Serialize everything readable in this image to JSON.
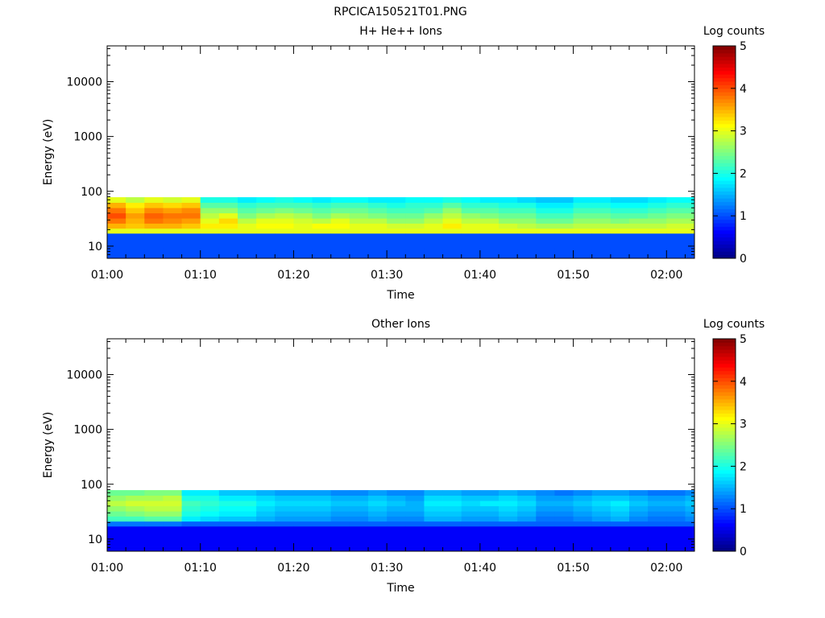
{
  "figure": {
    "title": "RPCICA150521T01.PNG"
  },
  "colors": {
    "colormap": [
      "#00007f",
      "#0000ff",
      "#007fff",
      "#00ffff",
      "#7fff7f",
      "#ffff00",
      "#ff7f00",
      "#ff0000",
      "#7f0000"
    ],
    "background": "#ffffff",
    "axis": "#000000"
  },
  "chart_data": [
    {
      "type": "heatmap",
      "title": "H+ He++ Ions",
      "xlabel": "Time",
      "ylabel": "Energy (eV)",
      "xlim": [
        "01:00",
        "02:03"
      ],
      "xticks": [
        "01:00",
        "01:10",
        "01:20",
        "01:30",
        "01:40",
        "01:50",
        "02:00"
      ],
      "yscale": "log",
      "ylim": [
        6,
        45000
      ],
      "yticks": [
        "10",
        "100",
        "1000",
        "10000"
      ],
      "data_energy_range": [
        6,
        95
      ],
      "colorbar": {
        "label": "Log counts",
        "range": [
          0,
          5
        ],
        "ticks": [
          "0",
          "1",
          "2",
          "3",
          "4",
          "5"
        ]
      },
      "time_bins": [
        "01:00",
        "01:02",
        "01:04",
        "01:06",
        "01:08",
        "01:10",
        "01:12",
        "01:14",
        "01:16",
        "01:18",
        "01:20",
        "01:22",
        "01:24",
        "01:26",
        "01:28",
        "01:30",
        "01:32",
        "01:34",
        "01:36",
        "01:38",
        "01:40",
        "01:42",
        "01:44",
        "01:46",
        "01:48",
        "01:50",
        "01:52",
        "01:54",
        "01:56",
        "01:58",
        "02:00",
        "02:02"
      ],
      "energy_bins": [
        6.5,
        8,
        10,
        12.5,
        15.5,
        19,
        23.5,
        29,
        36,
        45,
        56,
        70,
        87
      ],
      "values": [
        [
          1,
          1,
          1,
          1,
          1,
          3,
          3.5,
          3.8,
          4,
          3.8,
          3.5,
          3
        ],
        [
          1,
          1,
          1,
          1,
          1,
          3,
          3.4,
          3.5,
          3.6,
          3.4,
          3.2,
          2.8
        ],
        [
          1,
          1,
          1,
          1,
          1,
          3,
          3.5,
          3.8,
          3.9,
          3.7,
          3.4,
          3
        ],
        [
          1,
          1,
          1,
          1,
          1,
          3,
          3.5,
          3.7,
          3.8,
          3.6,
          3.3,
          2.9
        ],
        [
          1,
          1,
          1,
          1,
          1,
          3,
          3.4,
          3.6,
          3.8,
          3.7,
          3.4,
          3
        ],
        [
          1,
          1,
          1,
          1,
          1,
          3,
          3.2,
          3,
          2.8,
          2.6,
          2.3,
          2
        ],
        [
          1,
          1,
          1,
          1,
          1,
          3,
          3.2,
          3.3,
          3,
          2.6,
          2.3,
          2
        ],
        [
          1,
          1,
          1,
          1,
          1,
          3,
          3,
          2.8,
          2.5,
          2.3,
          2.1,
          1.8
        ],
        [
          1,
          1,
          1,
          1,
          1,
          3,
          3.1,
          3,
          2.7,
          2.4,
          2.2,
          1.9
        ],
        [
          1,
          1,
          1,
          1,
          1,
          3,
          3.1,
          3,
          2.8,
          2.5,
          2.2,
          2
        ],
        [
          1,
          1,
          1,
          1,
          1,
          3,
          3,
          2.9,
          2.7,
          2.4,
          2.2,
          1.9
        ],
        [
          1,
          1,
          1,
          1,
          1,
          3,
          3.1,
          2.8,
          2.5,
          2.3,
          2.1,
          1.8
        ],
        [
          1,
          1,
          1,
          1,
          1,
          3,
          3.1,
          3,
          2.7,
          2.4,
          2.2,
          1.9
        ],
        [
          1,
          1,
          1,
          1,
          1,
          3,
          3,
          2.8,
          2.6,
          2.4,
          2.2,
          1.9
        ],
        [
          1,
          1,
          1,
          1,
          1,
          3,
          3,
          2.8,
          2.5,
          2.3,
          2.1,
          1.8
        ],
        [
          1,
          1,
          1,
          1,
          1,
          3,
          2.9,
          2.6,
          2.4,
          2.2,
          2,
          1.8
        ],
        [
          1,
          1,
          1,
          1,
          1,
          3,
          2.9,
          2.6,
          2.4,
          2.2,
          2.1,
          1.9
        ],
        [
          1,
          1,
          1,
          1,
          1,
          3,
          3,
          2.8,
          2.6,
          2.3,
          2.1,
          1.9
        ],
        [
          1,
          1,
          1,
          1,
          1,
          3,
          3.2,
          3,
          2.8,
          2.6,
          2.3,
          2
        ],
        [
          1,
          1,
          1,
          1,
          1,
          3,
          3,
          2.8,
          2.6,
          2.3,
          2.1,
          1.9
        ],
        [
          1,
          1,
          1,
          1,
          1,
          3,
          3,
          2.8,
          2.5,
          2.3,
          2.1,
          1.8
        ],
        [
          1,
          1,
          1,
          1,
          1,
          3,
          2.9,
          2.6,
          2.4,
          2.2,
          2,
          1.8
        ],
        [
          1,
          1,
          1,
          1,
          1,
          3,
          2.8,
          2.6,
          2.4,
          2.2,
          2,
          1.7
        ],
        [
          1,
          1,
          1,
          1,
          1,
          3,
          2.7,
          2.4,
          2.2,
          2,
          1.8,
          1.6
        ],
        [
          1,
          1,
          1,
          1,
          1,
          3,
          2.7,
          2.4,
          2.2,
          2,
          1.8,
          1.6
        ],
        [
          1,
          1,
          1,
          1,
          1,
          3,
          2.8,
          2.6,
          2.4,
          2.2,
          2,
          1.8
        ],
        [
          1,
          1,
          1,
          1,
          1,
          3,
          2.8,
          2.6,
          2.4,
          2.2,
          2,
          1.8
        ],
        [
          1,
          1,
          1,
          1,
          1,
          3,
          2.8,
          2.5,
          2.3,
          2.1,
          1.9,
          1.7
        ],
        [
          1,
          1,
          1,
          1,
          1,
          3,
          2.8,
          2.6,
          2.3,
          2.1,
          1.9,
          1.7
        ],
        [
          1,
          1,
          1,
          1,
          1,
          3,
          2.8,
          2.6,
          2.4,
          2.2,
          2,
          1.8
        ],
        [
          1,
          1,
          1,
          1,
          1,
          3,
          2.9,
          2.7,
          2.5,
          2.3,
          2.1,
          1.9
        ],
        [
          1,
          1,
          1,
          1,
          1,
          3,
          2.9,
          2.7,
          2.5,
          2.3,
          2.1,
          1.9
        ]
      ]
    },
    {
      "type": "heatmap",
      "title": "Other Ions",
      "xlabel": "Time",
      "ylabel": "Energy (eV)",
      "xlim": [
        "01:00",
        "02:03"
      ],
      "xticks": [
        "01:00",
        "01:10",
        "01:20",
        "01:30",
        "01:40",
        "01:50",
        "02:00"
      ],
      "yscale": "log",
      "ylim": [
        6,
        45000
      ],
      "yticks": [
        "10",
        "100",
        "1000",
        "10000"
      ],
      "data_energy_range": [
        6,
        95
      ],
      "colorbar": {
        "label": "Log counts",
        "range": [
          0,
          5
        ],
        "ticks": [
          "0",
          "1",
          "2",
          "3",
          "4",
          "5"
        ]
      },
      "time_bins": [
        "01:00",
        "01:02",
        "01:04",
        "01:06",
        "01:08",
        "01:10",
        "01:12",
        "01:14",
        "01:16",
        "01:18",
        "01:20",
        "01:22",
        "01:24",
        "01:26",
        "01:28",
        "01:30",
        "01:32",
        "01:34",
        "01:36",
        "01:38",
        "01:40",
        "01:42",
        "01:44",
        "01:46",
        "01:48",
        "01:50",
        "01:52",
        "01:54",
        "01:56",
        "01:58",
        "02:00",
        "02:02"
      ],
      "energy_bins": [
        6.5,
        8,
        10,
        12.5,
        15.5,
        19,
        23.5,
        29,
        36,
        45,
        56,
        70,
        87
      ],
      "values": [
        [
          0.6,
          0.6,
          0.6,
          0.6,
          0.6,
          1.2,
          2.2,
          2.4,
          2.6,
          2.8,
          2.6,
          2.4
        ],
        [
          0.6,
          0.6,
          0.6,
          0.6,
          0.6,
          1.2,
          2.2,
          2.5,
          2.7,
          2.9,
          2.7,
          2.4
        ],
        [
          0.6,
          0.6,
          0.6,
          0.6,
          0.6,
          1.2,
          2.3,
          2.6,
          2.8,
          2.9,
          2.7,
          2.5
        ],
        [
          0.6,
          0.6,
          0.6,
          0.6,
          0.6,
          1.2,
          2.3,
          2.6,
          2.8,
          2.9,
          2.8,
          2.5
        ],
        [
          0.6,
          0.6,
          0.6,
          0.6,
          0.6,
          1.1,
          1.8,
          2,
          2.1,
          2.2,
          2,
          1.8
        ],
        [
          0.6,
          0.6,
          0.6,
          0.6,
          0.6,
          1.1,
          1.7,
          1.9,
          2,
          2.1,
          2,
          1.8
        ],
        [
          0.6,
          0.6,
          0.6,
          0.6,
          0.6,
          1.1,
          1.6,
          1.8,
          1.9,
          2,
          1.8,
          1.6
        ],
        [
          0.6,
          0.6,
          0.6,
          0.6,
          0.6,
          1.1,
          1.6,
          1.8,
          1.9,
          2,
          1.8,
          1.6
        ],
        [
          0.6,
          0.6,
          0.6,
          0.6,
          0.6,
          1.1,
          1.5,
          1.6,
          1.7,
          1.8,
          1.7,
          1.5
        ],
        [
          0.6,
          0.6,
          0.6,
          0.6,
          0.6,
          1.1,
          1.4,
          1.5,
          1.6,
          1.7,
          1.6,
          1.4
        ],
        [
          0.6,
          0.6,
          0.6,
          0.6,
          0.6,
          1.1,
          1.4,
          1.5,
          1.6,
          1.7,
          1.6,
          1.4
        ],
        [
          0.6,
          0.6,
          0.6,
          0.6,
          0.6,
          1.1,
          1.4,
          1.5,
          1.6,
          1.7,
          1.6,
          1.4
        ],
        [
          0.6,
          0.6,
          0.6,
          0.6,
          0.6,
          1.1,
          1.3,
          1.4,
          1.5,
          1.6,
          1.5,
          1.3
        ],
        [
          0.6,
          0.6,
          0.6,
          0.6,
          0.6,
          1.1,
          1.3,
          1.4,
          1.5,
          1.6,
          1.5,
          1.3
        ],
        [
          0.6,
          0.6,
          0.6,
          0.6,
          0.6,
          1.1,
          1.4,
          1.5,
          1.6,
          1.7,
          1.6,
          1.4
        ],
        [
          0.6,
          0.6,
          0.6,
          0.6,
          0.6,
          1.1,
          1.3,
          1.4,
          1.5,
          1.6,
          1.5,
          1.3
        ],
        [
          0.6,
          0.6,
          0.6,
          0.6,
          0.6,
          1.1,
          1.3,
          1.4,
          1.5,
          1.5,
          1.4,
          1.3
        ],
        [
          0.6,
          0.6,
          0.6,
          0.6,
          0.6,
          1.1,
          1.5,
          1.6,
          1.7,
          1.8,
          1.7,
          1.5
        ],
        [
          0.6,
          0.6,
          0.6,
          0.6,
          0.6,
          1.1,
          1.5,
          1.6,
          1.7,
          1.8,
          1.7,
          1.5
        ],
        [
          0.6,
          0.6,
          0.6,
          0.6,
          0.6,
          1.1,
          1.4,
          1.5,
          1.6,
          1.7,
          1.6,
          1.4
        ],
        [
          0.6,
          0.6,
          0.6,
          0.6,
          0.6,
          1.1,
          1.4,
          1.5,
          1.6,
          1.8,
          1.6,
          1.4
        ],
        [
          0.6,
          0.6,
          0.6,
          0.6,
          0.6,
          1.1,
          1.5,
          1.6,
          1.7,
          1.8,
          1.7,
          1.5
        ],
        [
          0.6,
          0.6,
          0.6,
          0.6,
          0.6,
          1.1,
          1.4,
          1.5,
          1.6,
          1.7,
          1.6,
          1.4
        ],
        [
          0.6,
          0.6,
          0.6,
          0.6,
          0.6,
          1.1,
          1.2,
          1.3,
          1.4,
          1.5,
          1.4,
          1.3
        ],
        [
          0.6,
          0.6,
          0.6,
          0.6,
          0.6,
          1.1,
          1.2,
          1.3,
          1.4,
          1.5,
          1.4,
          1.2
        ],
        [
          0.6,
          0.6,
          0.6,
          0.6,
          0.6,
          1.1,
          1.3,
          1.4,
          1.5,
          1.6,
          1.5,
          1.3
        ],
        [
          0.6,
          0.6,
          0.6,
          0.6,
          0.6,
          1.1,
          1.4,
          1.5,
          1.6,
          1.7,
          1.6,
          1.4
        ],
        [
          0.6,
          0.6,
          0.6,
          0.6,
          0.6,
          1.1,
          1.5,
          1.6,
          1.7,
          1.8,
          1.6,
          1.4
        ],
        [
          0.6,
          0.6,
          0.6,
          0.6,
          0.6,
          1.1,
          1.3,
          1.4,
          1.5,
          1.6,
          1.5,
          1.3
        ],
        [
          0.6,
          0.6,
          0.6,
          0.6,
          0.6,
          1.1,
          1.2,
          1.3,
          1.4,
          1.5,
          1.4,
          1.2
        ],
        [
          0.6,
          0.6,
          0.6,
          0.6,
          0.6,
          1.1,
          1.2,
          1.3,
          1.4,
          1.5,
          1.4,
          1.2
        ],
        [
          0.6,
          0.6,
          0.6,
          0.6,
          0.6,
          1.1,
          1.3,
          1.4,
          1.5,
          1.6,
          1.5,
          1.3
        ]
      ]
    }
  ]
}
